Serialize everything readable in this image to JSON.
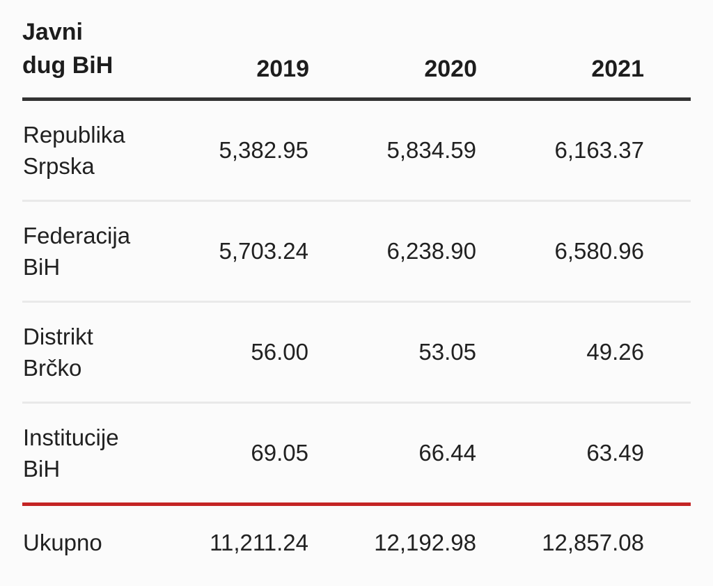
{
  "page": {
    "background": "#fbfbfb"
  },
  "table": {
    "title": {
      "line1": "Javni",
      "line2": "dug BiH"
    },
    "columns": [
      "2019",
      "2020",
      "2021"
    ],
    "rows": [
      {
        "label_line1": "Republika",
        "label_line2": "Srpska",
        "values": [
          "5,382.95",
          "5,834.59",
          "6,163.37"
        ]
      },
      {
        "label_line1": "Federacija",
        "label_line2": "BiH",
        "values": [
          "5,703.24",
          "6,238.90",
          "6,580.96"
        ]
      },
      {
        "label_line1": "Distrikt",
        "label_line2": "Brčko",
        "values": [
          "56.00",
          "53.05",
          "49.26"
        ]
      },
      {
        "label_line1": "Institucije",
        "label_line2": "BiH",
        "values": [
          "69.05",
          "66.44",
          "63.49"
        ]
      }
    ],
    "total": {
      "label": "Ukupno",
      "values": [
        "11,211.24",
        "12,192.98",
        "12,857.08"
      ]
    },
    "colors": {
      "header_rule": "#333333",
      "row_divider": "#e9e9e9",
      "total_rule": "#c42424",
      "text": "#212121"
    }
  },
  "chart_data": {
    "type": "table",
    "title": "Javni dug BiH",
    "columns": [
      "2019",
      "2020",
      "2021"
    ],
    "rows": [
      {
        "label": "Republika Srpska",
        "values": [
          5382.95,
          5834.59,
          6163.37
        ]
      },
      {
        "label": "Federacija BiH",
        "values": [
          5703.24,
          6238.9,
          6580.96
        ]
      },
      {
        "label": "Distrikt Brčko",
        "values": [
          56.0,
          53.05,
          49.26
        ]
      },
      {
        "label": "Institucije BiH",
        "values": [
          69.05,
          66.44,
          63.49
        ]
      },
      {
        "label": "Ukupno",
        "values": [
          11211.24,
          12192.98,
          12857.08
        ]
      }
    ],
    "layout": {
      "header_rule_color": "#333333",
      "total_rule_color": "#c42424",
      "value_alignment": "right"
    }
  }
}
